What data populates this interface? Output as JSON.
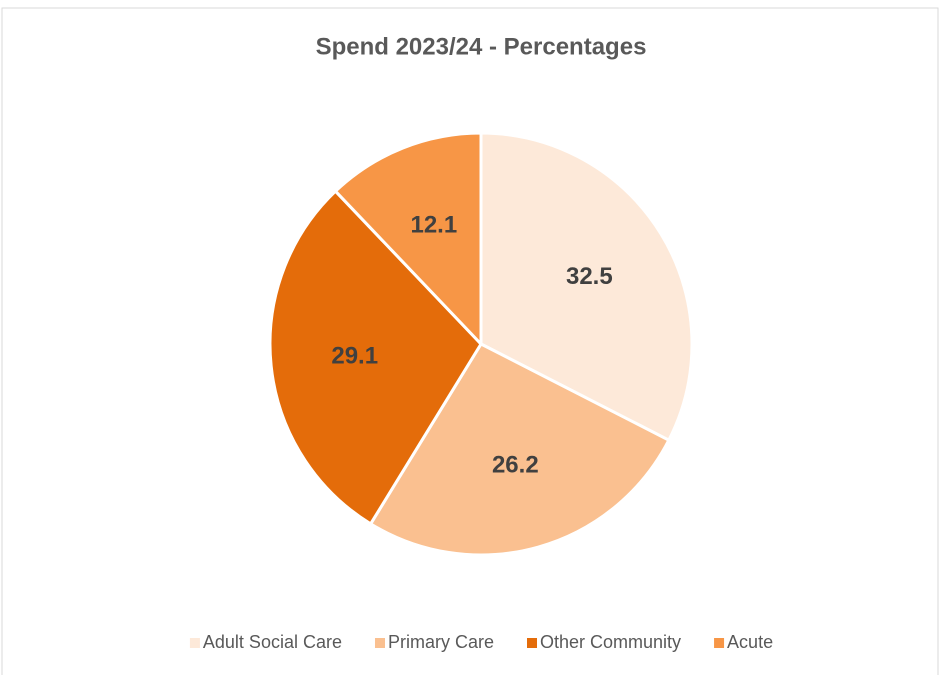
{
  "chart_data": {
    "type": "pie",
    "title": "Spend 2023/24 - Percentages",
    "categories": [
      "Adult Social Care",
      "Primary Care",
      "Other Community",
      "Acute"
    ],
    "values": [
      32.5,
      26.2,
      29.1,
      12.1
    ],
    "colors": [
      "#fde9d9",
      "#fac090",
      "#e46c0a",
      "#f79646"
    ],
    "legend": "bottom"
  }
}
